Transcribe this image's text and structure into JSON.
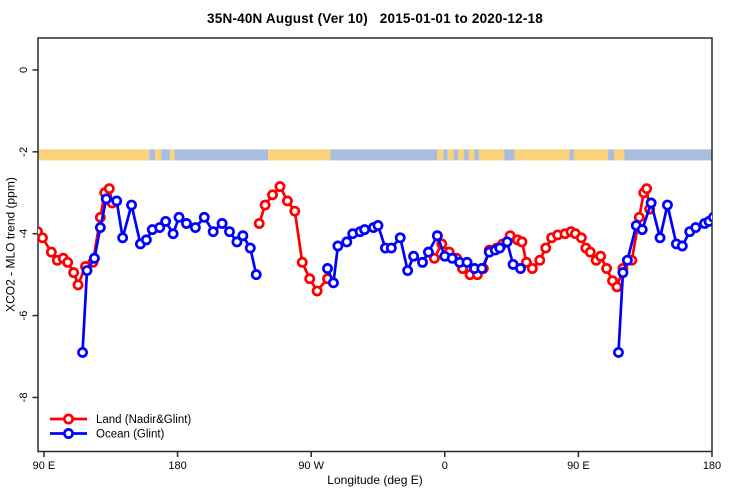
{
  "chart_data": {
    "type": "line",
    "title": "35N-40N August (Ver 10)   2015-01-01 to 2020-12-18",
    "xlabel": "Longitude (deg E)",
    "ylabel": "XCO2 - MLO trend (ppm)",
    "grid": false,
    "legend_position": "bottom-left-inside",
    "xlim": [
      86,
      540
    ],
    "ylim": [
      -9.32,
      0.78
    ],
    "x_ticks": [
      {
        "value": 90,
        "label": "90 E"
      },
      {
        "value": 180,
        "label": "180"
      },
      {
        "value": 270,
        "label": "90 W"
      },
      {
        "value": 360,
        "label": "0"
      },
      {
        "value": 450,
        "label": "90 E"
      },
      {
        "value": 540,
        "label": "180"
      }
    ],
    "y_ticks": [
      {
        "value": 0,
        "label": "0"
      },
      {
        "value": -2,
        "label": "-2"
      },
      {
        "value": -4,
        "label": "-4"
      },
      {
        "value": -6,
        "label": "-6"
      },
      {
        "value": -8,
        "label": "-8"
      }
    ],
    "surface_band": {
      "y_top": -1.94,
      "y_bottom": -2.21,
      "land_color": "#FBD27C",
      "ocean_color": "#A9BEDF",
      "segments": [
        {
          "from": 86,
          "to": 161,
          "type": "land"
        },
        {
          "from": 161,
          "to": 165,
          "type": "ocean"
        },
        {
          "from": 165,
          "to": 169,
          "type": "land"
        },
        {
          "from": 169,
          "to": 175,
          "type": "ocean"
        },
        {
          "from": 175,
          "to": 178,
          "type": "land"
        },
        {
          "from": 178,
          "to": 241,
          "type": "ocean"
        },
        {
          "from": 241,
          "to": 283,
          "type": "land"
        },
        {
          "from": 283,
          "to": 355,
          "type": "ocean"
        },
        {
          "from": 355,
          "to": 359,
          "type": "land"
        },
        {
          "from": 359,
          "to": 362,
          "type": "ocean"
        },
        {
          "from": 362,
          "to": 366,
          "type": "land"
        },
        {
          "from": 366,
          "to": 369,
          "type": "ocean"
        },
        {
          "from": 369,
          "to": 373,
          "type": "land"
        },
        {
          "from": 373,
          "to": 376,
          "type": "ocean"
        },
        {
          "from": 376,
          "to": 380,
          "type": "land"
        },
        {
          "from": 380,
          "to": 383,
          "type": "ocean"
        },
        {
          "from": 383,
          "to": 400,
          "type": "land"
        },
        {
          "from": 400,
          "to": 407,
          "type": "ocean"
        },
        {
          "from": 407,
          "to": 444,
          "type": "land"
        },
        {
          "from": 444,
          "to": 447,
          "type": "ocean"
        },
        {
          "from": 447,
          "to": 470,
          "type": "land"
        },
        {
          "from": 470,
          "to": 474,
          "type": "ocean"
        },
        {
          "from": 474,
          "to": 481,
          "type": "land"
        },
        {
          "from": 481,
          "to": 540,
          "type": "ocean"
        }
      ]
    },
    "series": [
      {
        "name": "Land (Nadir&Glint)",
        "color": "#FF0000",
        "segments": [
          [
            [
              85.7,
              -3.95
            ],
            [
              89,
              -4.1
            ],
            [
              95,
              -4.45
            ],
            [
              99,
              -4.65
            ],
            [
              103,
              -4.6
            ],
            [
              106,
              -4.7
            ],
            [
              110,
              -4.95
            ],
            [
              113,
              -5.25
            ],
            [
              118,
              -4.8
            ],
            [
              123,
              -4.7
            ],
            [
              128,
              -3.6
            ],
            [
              131,
              -3.0
            ],
            [
              134,
              -2.9
            ],
            [
              136,
              -3.25
            ]
          ],
          [
            [
              235,
              -3.75
            ],
            [
              239,
              -3.3
            ],
            [
              244,
              -3.05
            ],
            [
              249,
              -2.85
            ],
            [
              254,
              -3.2
            ],
            [
              259,
              -3.45
            ],
            [
              264,
              -4.7
            ],
            [
              269,
              -5.1
            ],
            [
              274,
              -5.4
            ],
            [
              281,
              -5.1
            ]
          ],
          [
            [
              353,
              -4.6
            ],
            [
              358,
              -4.25
            ],
            [
              363,
              -4.45
            ],
            [
              368,
              -4.6
            ],
            [
              372,
              -4.85
            ],
            [
              377,
              -5.0
            ],
            [
              382,
              -5.0
            ],
            [
              386,
              -4.85
            ],
            [
              390,
              -4.4
            ],
            [
              395,
              -4.35
            ],
            [
              399,
              -4.25
            ],
            [
              404,
              -4.05
            ],
            [
              409,
              -4.15
            ],
            [
              412,
              -4.2
            ],
            [
              415,
              -4.7
            ],
            [
              419,
              -4.85
            ],
            [
              424,
              -4.65
            ],
            [
              428,
              -4.35
            ],
            [
              432,
              -4.1
            ],
            [
              436,
              -4.03
            ],
            [
              441,
              -4.0
            ],
            [
              445,
              -3.95
            ],
            [
              448,
              -4.0
            ],
            [
              452,
              -4.1
            ],
            [
              455,
              -4.35
            ],
            [
              458,
              -4.45
            ],
            [
              462,
              -4.65
            ],
            [
              465,
              -4.55
            ],
            [
              469,
              -4.85
            ],
            [
              473,
              -5.15
            ],
            [
              476,
              -5.3
            ],
            [
              480,
              -4.85
            ],
            [
              486,
              -4.65
            ],
            [
              491,
              -3.6
            ],
            [
              494,
              -3.0
            ],
            [
              496,
              -2.9
            ],
            [
              498,
              -3.4
            ]
          ]
        ]
      },
      {
        "name": "Ocean (Glint)",
        "color": "#0000FF",
        "segments": [
          [
            [
              116,
              -6.9
            ],
            [
              119,
              -4.9
            ],
            [
              124,
              -4.6
            ],
            [
              128,
              -3.85
            ],
            [
              132,
              -3.15
            ],
            [
              139,
              -3.2
            ],
            [
              143,
              -4.1
            ],
            [
              149,
              -3.3
            ],
            [
              155,
              -4.25
            ],
            [
              159,
              -4.15
            ],
            [
              163,
              -3.9
            ],
            [
              168,
              -3.85
            ],
            [
              172,
              -3.7
            ],
            [
              177,
              -4.0
            ],
            [
              181,
              -3.6
            ],
            [
              186,
              -3.75
            ],
            [
              192,
              -3.85
            ],
            [
              198,
              -3.6
            ],
            [
              204,
              -3.95
            ],
            [
              210,
              -3.75
            ],
            [
              215,
              -3.95
            ],
            [
              220,
              -4.2
            ],
            [
              224,
              -4.05
            ],
            [
              229,
              -4.35
            ],
            [
              233,
              -5.0
            ]
          ],
          [
            [
              281,
              -4.85
            ],
            [
              285,
              -5.2
            ],
            [
              288,
              -4.3
            ],
            [
              294,
              -4.2
            ],
            [
              298,
              -4.0
            ],
            [
              303,
              -3.95
            ],
            [
              306,
              -3.9
            ],
            [
              312,
              -3.85
            ],
            [
              315,
              -3.8
            ],
            [
              320,
              -4.35
            ],
            [
              324,
              -4.35
            ],
            [
              330,
              -4.1
            ],
            [
              335,
              -4.9
            ],
            [
              339,
              -4.55
            ],
            [
              345,
              -4.7
            ],
            [
              349,
              -4.45
            ],
            [
              355,
              -4.05
            ],
            [
              360,
              -4.55
            ],
            [
              365,
              -4.6
            ],
            [
              370,
              -4.7
            ],
            [
              375,
              -4.7
            ],
            [
              380,
              -4.85
            ],
            [
              385,
              -4.85
            ],
            [
              390,
              -4.45
            ],
            [
              394,
              -4.4
            ],
            [
              397,
              -4.35
            ],
            [
              402,
              -4.2
            ],
            [
              406,
              -4.75
            ],
            [
              411,
              -4.85
            ]
          ],
          [
            [
              477,
              -6.9
            ],
            [
              480,
              -4.95
            ],
            [
              483,
              -4.65
            ],
            [
              489,
              -3.8
            ],
            [
              493,
              -3.9
            ],
            [
              499,
              -3.25
            ],
            [
              505,
              -4.1
            ],
            [
              510,
              -3.3
            ],
            [
              516,
              -4.25
            ],
            [
              520,
              -4.3
            ],
            [
              525,
              -3.95
            ],
            [
              529,
              -3.85
            ],
            [
              535,
              -3.75
            ],
            [
              538,
              -3.7
            ],
            [
              541,
              -3.6
            ]
          ]
        ]
      }
    ]
  },
  "style": {
    "axis_color": "#2b2b2b",
    "text_color": "#000000",
    "marker_fill": "#ffffff"
  }
}
